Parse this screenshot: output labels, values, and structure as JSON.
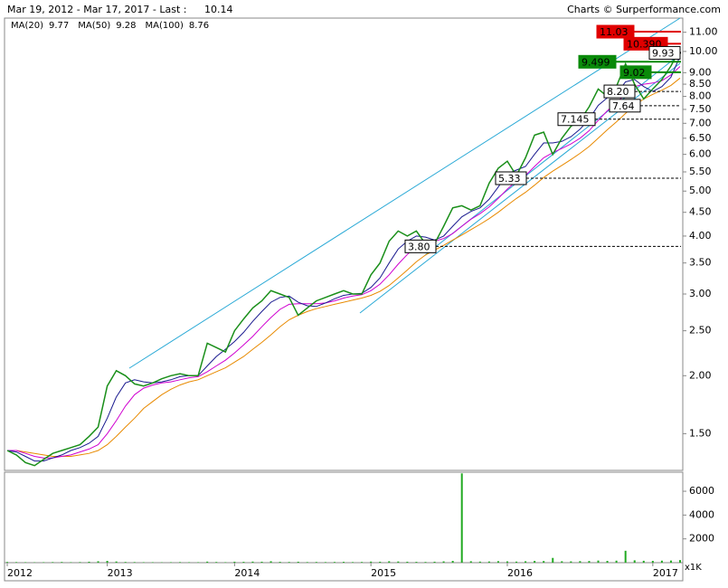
{
  "chart_data": {
    "type": "line",
    "subtitle": "Mar 19, 2012 - Mar 17, 2017 - Last :",
    "credit": "Charts © Surperformance.com",
    "color": "#1a8f1a",
    "log_scale": true,
    "grid": false,
    "categories": [
      "2012",
      null,
      null,
      null,
      null,
      null,
      null,
      null,
      null,
      null,
      null,
      "2013",
      null,
      null,
      null,
      null,
      null,
      null,
      null,
      null,
      null,
      null,
      null,
      null,
      null,
      "2014",
      null,
      null,
      null,
      null,
      null,
      null,
      null,
      null,
      null,
      null,
      null,
      null,
      null,
      null,
      "2015",
      null,
      null,
      null,
      null,
      null,
      null,
      null,
      null,
      null,
      null,
      null,
      null,
      null,
      null,
      "2016",
      null,
      null,
      null,
      null,
      null,
      null,
      null,
      null,
      null,
      null,
      null,
      null,
      null,
      null,
      null,
      "2017",
      null,
      null,
      null
    ],
    "values": [
      1.38,
      1.35,
      1.3,
      1.28,
      1.32,
      1.36,
      1.38,
      1.4,
      1.42,
      1.48,
      1.55,
      1.9,
      2.05,
      2.0,
      1.92,
      1.9,
      1.93,
      1.97,
      2.0,
      2.02,
      2.0,
      2.0,
      2.35,
      2.3,
      2.25,
      2.5,
      2.65,
      2.8,
      2.9,
      3.05,
      3.0,
      2.95,
      2.7,
      2.8,
      2.9,
      2.95,
      3.0,
      3.05,
      3.0,
      3.0,
      3.3,
      3.5,
      3.9,
      4.1,
      4.0,
      4.1,
      3.85,
      3.85,
      4.2,
      4.6,
      4.65,
      4.55,
      4.65,
      5.2,
      5.6,
      5.8,
      5.4,
      5.9,
      6.6,
      6.7,
      6.0,
      6.5,
      6.9,
      7.1,
      7.6,
      8.3,
      8.0,
      8.4,
      9.4,
      8.5,
      7.9,
      8.3,
      8.7,
      9.3,
      10.14
    ],
    "series": [
      {
        "name": "MA(20)",
        "color": "#1a1a8f",
        "values": [
          1.38,
          1.37,
          1.34,
          1.31,
          1.31,
          1.33,
          1.35,
          1.38,
          1.4,
          1.43,
          1.48,
          1.62,
          1.8,
          1.93,
          1.96,
          1.94,
          1.93,
          1.94,
          1.96,
          1.99,
          2.0,
          2.0,
          2.1,
          2.2,
          2.28,
          2.37,
          2.48,
          2.62,
          2.75,
          2.88,
          2.95,
          2.97,
          2.88,
          2.83,
          2.82,
          2.87,
          2.93,
          2.98,
          3.0,
          3.01,
          3.1,
          3.25,
          3.5,
          3.75,
          3.9,
          4.0,
          3.98,
          3.92,
          4.0,
          4.2,
          4.4,
          4.52,
          4.6,
          4.8,
          5.1,
          5.45,
          5.55,
          5.65,
          6.0,
          6.35,
          6.35,
          6.4,
          6.55,
          6.8,
          7.15,
          7.65,
          7.95,
          8.1,
          8.6,
          8.7,
          8.4,
          8.2,
          8.4,
          8.8,
          9.77
        ]
      },
      {
        "name": "MA(50)",
        "color": "#d000d0",
        "values": [
          1.38,
          1.38,
          1.36,
          1.34,
          1.33,
          1.33,
          1.34,
          1.35,
          1.37,
          1.39,
          1.42,
          1.5,
          1.6,
          1.72,
          1.82,
          1.88,
          1.91,
          1.93,
          1.94,
          1.96,
          1.98,
          1.99,
          2.04,
          2.1,
          2.16,
          2.24,
          2.33,
          2.43,
          2.55,
          2.67,
          2.78,
          2.85,
          2.86,
          2.86,
          2.86,
          2.87,
          2.9,
          2.94,
          2.97,
          2.99,
          3.05,
          3.15,
          3.3,
          3.48,
          3.65,
          3.8,
          3.88,
          3.9,
          3.95,
          4.05,
          4.2,
          4.35,
          4.47,
          4.62,
          4.82,
          5.05,
          5.25,
          5.4,
          5.65,
          5.9,
          6.05,
          6.18,
          6.32,
          6.5,
          6.75,
          7.1,
          7.45,
          7.75,
          8.1,
          8.4,
          8.5,
          8.55,
          8.65,
          8.9,
          9.28
        ]
      },
      {
        "name": "MA(100)",
        "color": "#e88a00",
        "values": [
          1.38,
          1.38,
          1.37,
          1.36,
          1.35,
          1.34,
          1.34,
          1.34,
          1.35,
          1.36,
          1.38,
          1.42,
          1.48,
          1.55,
          1.62,
          1.7,
          1.76,
          1.82,
          1.87,
          1.91,
          1.94,
          1.96,
          2.0,
          2.04,
          2.08,
          2.14,
          2.2,
          2.28,
          2.36,
          2.45,
          2.55,
          2.64,
          2.7,
          2.75,
          2.79,
          2.82,
          2.85,
          2.88,
          2.91,
          2.94,
          2.98,
          3.04,
          3.13,
          3.25,
          3.38,
          3.52,
          3.64,
          3.73,
          3.82,
          3.92,
          4.02,
          4.13,
          4.24,
          4.36,
          4.5,
          4.66,
          4.82,
          4.97,
          5.15,
          5.35,
          5.52,
          5.68,
          5.85,
          6.03,
          6.24,
          6.5,
          6.78,
          7.05,
          7.35,
          7.65,
          7.9,
          8.08,
          8.25,
          8.45,
          8.76
        ]
      }
    ],
    "ylim": [
      1.25,
      11.8
    ],
    "yticks": [
      {
        "value": 1.5,
        "label": "1.50"
      },
      {
        "value": 2,
        "label": "2.00"
      },
      {
        "value": 2.5,
        "label": "2.50"
      },
      {
        "value": 3,
        "label": "3.00"
      },
      {
        "value": 3.5,
        "label": "3.50"
      },
      {
        "value": 4,
        "label": "4.00"
      },
      {
        "value": 4.5,
        "label": "4.50"
      },
      {
        "value": 5,
        "label": "5.00"
      },
      {
        "value": 5.5,
        "label": "5.50"
      },
      {
        "value": 6,
        "label": "6.00"
      },
      {
        "value": 6.5,
        "label": "6.50"
      },
      {
        "value": 7,
        "label": "7.00"
      },
      {
        "value": 7.5,
        "label": "7.50"
      },
      {
        "value": 8,
        "label": "8.00"
      },
      {
        "value": 8.5,
        "label": "8.50"
      },
      {
        "value": 9,
        "label": "9.00"
      },
      {
        "value": 10,
        "label": "10.00"
      },
      {
        "value": 11,
        "label": "11.00"
      }
    ],
    "levels": [
      {
        "value": 11.03,
        "color": "#e00000",
        "filled": true,
        "dashed": false
      },
      {
        "value": 10.39,
        "label": "10.390",
        "color": "#e00000",
        "filled": true,
        "dashed": false
      },
      {
        "value": 9.93,
        "color": "#000000",
        "filled": false,
        "dashed": false
      },
      {
        "value": 9.499,
        "color": "#0a8a0a",
        "filled": true,
        "dashed": false
      },
      {
        "value": 9.02,
        "color": "#0a8a0a",
        "filled": true,
        "dashed": false
      },
      {
        "value": 8.2,
        "label": "8.20",
        "color": "#000000",
        "filled": false,
        "dashed": true
      },
      {
        "value": 7.64,
        "color": "#000000",
        "filled": false,
        "dashed": true
      },
      {
        "value": 7.145,
        "color": "#000000",
        "filled": false,
        "dashed": true
      },
      {
        "value": 5.33,
        "color": "#000000",
        "filled": false,
        "dashed": true
      },
      {
        "value": 3.8,
        "label": "3.80",
        "color": "#000000",
        "filled": false,
        "dashed": true
      }
    ],
    "volume": {
      "color": "#22aa22",
      "unit": "x1K",
      "ylim": [
        0,
        7600
      ],
      "yticks": [
        2000,
        4000,
        6000
      ],
      "values": [
        60,
        50,
        40,
        30,
        40,
        50,
        60,
        40,
        50,
        80,
        120,
        150,
        100,
        60,
        50,
        40,
        40,
        30,
        40,
        50,
        40,
        40,
        90,
        60,
        40,
        80,
        70,
        90,
        80,
        120,
        70,
        60,
        80,
        50,
        60,
        50,
        60,
        70,
        50,
        60,
        90,
        80,
        120,
        100,
        80,
        70,
        60,
        80,
        110,
        150,
        7500,
        120,
        90,
        100,
        130,
        110,
        90,
        120,
        150,
        140,
        400,
        120,
        110,
        130,
        140,
        180,
        150,
        170,
        1000,
        200,
        160,
        150,
        170,
        180,
        220
      ]
    }
  }
}
